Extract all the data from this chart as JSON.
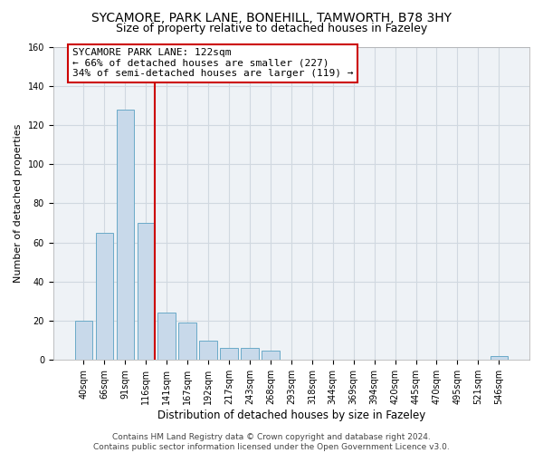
{
  "title": "SYCAMORE, PARK LANE, BONEHILL, TAMWORTH, B78 3HY",
  "subtitle": "Size of property relative to detached houses in Fazeley",
  "xlabel": "Distribution of detached houses by size in Fazeley",
  "ylabel": "Number of detached properties",
  "bar_labels": [
    "40sqm",
    "66sqm",
    "91sqm",
    "116sqm",
    "141sqm",
    "167sqm",
    "192sqm",
    "217sqm",
    "243sqm",
    "268sqm",
    "293sqm",
    "318sqm",
    "344sqm",
    "369sqm",
    "394sqm",
    "420sqm",
    "445sqm",
    "470sqm",
    "495sqm",
    "521sqm",
    "546sqm"
  ],
  "bar_values": [
    20,
    65,
    128,
    70,
    24,
    19,
    10,
    6,
    6,
    5,
    0,
    0,
    0,
    0,
    0,
    0,
    0,
    0,
    0,
    0,
    2
  ],
  "bar_color": "#c8d9ea",
  "bar_edge_color": "#6aaac8",
  "vline_index": 3,
  "vline_color": "#cc0000",
  "ylim": [
    0,
    160
  ],
  "yticks": [
    0,
    20,
    40,
    60,
    80,
    100,
    120,
    140,
    160
  ],
  "annotation_title": "SYCAMORE PARK LANE: 122sqm",
  "annotation_line1": "← 66% of detached houses are smaller (227)",
  "annotation_line2": "34% of semi-detached houses are larger (119) →",
  "annotation_box_color": "#ffffff",
  "annotation_box_edge": "#cc0000",
  "footer_line1": "Contains HM Land Registry data © Crown copyright and database right 2024.",
  "footer_line2": "Contains public sector information licensed under the Open Government Licence v3.0.",
  "grid_color": "#d0d8e0",
  "background_color": "#eef2f6",
  "title_fontsize": 10,
  "subtitle_fontsize": 9,
  "xlabel_fontsize": 8.5,
  "ylabel_fontsize": 8,
  "tick_fontsize": 7,
  "annotation_fontsize": 8,
  "footer_fontsize": 6.5
}
